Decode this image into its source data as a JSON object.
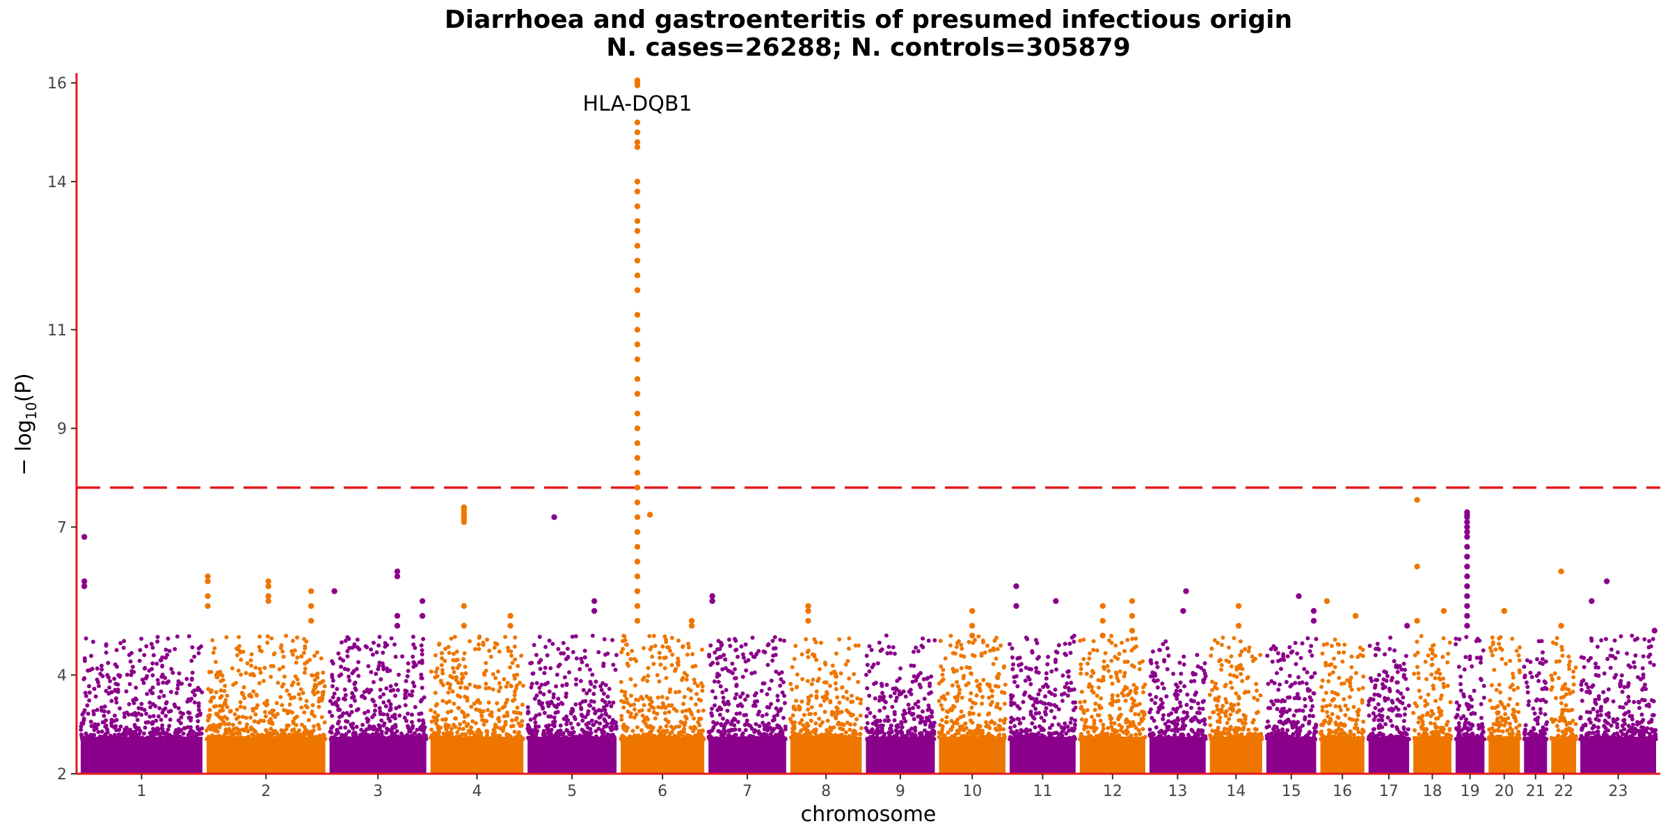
{
  "chart_data": {
    "type": "scatter",
    "subtype": "manhattan",
    "title": "Diarrhoea and gastroenteritis of presumed infectious origin",
    "subtitle": "N. cases=26288; N. controls=305879",
    "xlabel": "chromosome",
    "ylabel_prefix": "− log",
    "ylabel_sub": "10",
    "ylabel_suffix": "(P)",
    "ylim": [
      2,
      16.2
    ],
    "yticks": [
      "2",
      "4",
      "7",
      "9",
      "11",
      "14",
      "16"
    ],
    "ytick_values": [
      2,
      4,
      7,
      9,
      11,
      14,
      16
    ],
    "chromosomes": [
      "1",
      "2",
      "3",
      "4",
      "5",
      "6",
      "7",
      "8",
      "9",
      "10",
      "11",
      "12",
      "13",
      "14",
      "15",
      "16",
      "17",
      "18",
      "19",
      "20",
      "21",
      "22",
      "23"
    ],
    "chromosome_widths": [
      249,
      243,
      198,
      190,
      182,
      171,
      159,
      146,
      141,
      136,
      135,
      134,
      115,
      107,
      102,
      90,
      83,
      78,
      59,
      64,
      47,
      51,
      155
    ],
    "significance_line": 7.8,
    "grid": false,
    "colors": {
      "odd": "#8B008B",
      "even": "#EE7600",
      "threshold": "#E31A1C",
      "axis": "#E31A1C"
    },
    "annotations": [
      {
        "label": "HLA-DQB1",
        "chromosome": "6",
        "pos": 0.2,
        "value": 16.0
      }
    ],
    "peaks": [
      {
        "chromosome": "1",
        "pos": 0.03,
        "values": [
          6.8,
          5.9,
          5.8
        ]
      },
      {
        "chromosome": "2",
        "pos": 0.01,
        "values": [
          6.0,
          5.9,
          5.6,
          5.4
        ]
      },
      {
        "chromosome": "2",
        "pos": 0.52,
        "values": [
          5.9,
          5.8,
          5.6,
          5.5
        ]
      },
      {
        "chromosome": "2",
        "pos": 0.88,
        "values": [
          5.7,
          5.4,
          5.1
        ]
      },
      {
        "chromosome": "3",
        "pos": 0.05,
        "values": [
          5.7
        ]
      },
      {
        "chromosome": "3",
        "pos": 0.7,
        "values": [
          6.1,
          6.0,
          5.2,
          5.0
        ]
      },
      {
        "chromosome": "3",
        "pos": 0.96,
        "values": [
          5.5,
          5.2
        ]
      },
      {
        "chromosome": "4",
        "pos": 0.36,
        "values": [
          7.4,
          7.35,
          7.3,
          7.25,
          7.2,
          7.15,
          7.1,
          5.4,
          5.0
        ]
      },
      {
        "chromosome": "4",
        "pos": 0.86,
        "values": [
          5.2,
          5.0
        ]
      },
      {
        "chromosome": "5",
        "pos": 0.3,
        "values": [
          7.2
        ]
      },
      {
        "chromosome": "5",
        "pos": 0.75,
        "values": [
          5.5,
          5.3
        ]
      },
      {
        "chromosome": "6",
        "pos": 0.2,
        "values": [
          16.05,
          16.0,
          15.95,
          15.2,
          15.0,
          14.8,
          14.7,
          14.0,
          13.8,
          13.5,
          13.2,
          13.0,
          12.7,
          12.4,
          12.1,
          11.8,
          11.3,
          11.0,
          10.7,
          10.4,
          10.0,
          9.7,
          9.3,
          9.0,
          8.7,
          8.4,
          8.1,
          7.8,
          7.5,
          7.2,
          6.9,
          6.6,
          6.3,
          6.0,
          5.7,
          5.4,
          5.1
        ]
      },
      {
        "chromosome": "6",
        "pos": 0.35,
        "values": [
          7.25
        ]
      },
      {
        "chromosome": "6",
        "pos": 0.85,
        "values": [
          5.1,
          5.0
        ]
      },
      {
        "chromosome": "7",
        "pos": 0.05,
        "values": [
          5.6,
          5.5
        ]
      },
      {
        "chromosome": "8",
        "pos": 0.25,
        "values": [
          5.4,
          5.3,
          5.1
        ]
      },
      {
        "chromosome": "10",
        "pos": 0.5,
        "values": [
          5.3,
          5.0,
          4.8
        ]
      },
      {
        "chromosome": "11",
        "pos": 0.1,
        "values": [
          5.8,
          5.4
        ]
      },
      {
        "chromosome": "11",
        "pos": 0.7,
        "values": [
          5.5
        ]
      },
      {
        "chromosome": "12",
        "pos": 0.35,
        "values": [
          5.4,
          5.1,
          4.8
        ]
      },
      {
        "chromosome": "12",
        "pos": 0.8,
        "values": [
          5.5,
          5.2,
          4.9
        ]
      },
      {
        "chromosome": "13",
        "pos": 0.65,
        "values": [
          5.7
        ]
      },
      {
        "chromosome": "13",
        "pos": 0.6,
        "values": [
          5.3
        ]
      },
      {
        "chromosome": "14",
        "pos": 0.55,
        "values": [
          5.4,
          5.0
        ]
      },
      {
        "chromosome": "15",
        "pos": 0.65,
        "values": [
          5.6
        ]
      },
      {
        "chromosome": "15",
        "pos": 0.95,
        "values": [
          5.3,
          5.1
        ]
      },
      {
        "chromosome": "16",
        "pos": 0.15,
        "values": [
          5.5
        ]
      },
      {
        "chromosome": "16",
        "pos": 0.8,
        "values": [
          5.2
        ]
      },
      {
        "chromosome": "17",
        "pos": 0.95,
        "values": [
          5.0
        ]
      },
      {
        "chromosome": "18",
        "pos": 0.1,
        "values": [
          7.55,
          6.2,
          5.1
        ]
      },
      {
        "chromosome": "18",
        "pos": 0.8,
        "values": [
          5.3
        ]
      },
      {
        "chromosome": "19",
        "pos": 0.4,
        "values": [
          7.3,
          7.25,
          7.2,
          7.1,
          7.0,
          6.9,
          6.8,
          6.6,
          6.4,
          6.2,
          6.0,
          5.8,
          5.6,
          5.4,
          5.2,
          5.0
        ]
      },
      {
        "chromosome": "20",
        "pos": 0.5,
        "values": [
          5.3,
          5.3
        ]
      },
      {
        "chromosome": "22",
        "pos": 0.4,
        "values": [
          6.1,
          5.0
        ]
      },
      {
        "chromosome": "23",
        "pos": 0.35,
        "values": [
          5.9
        ]
      },
      {
        "chromosome": "23",
        "pos": 0.15,
        "values": [
          5.5
        ]
      },
      {
        "chromosome": "23",
        "pos": 0.98,
        "values": [
          4.9
        ]
      }
    ]
  }
}
